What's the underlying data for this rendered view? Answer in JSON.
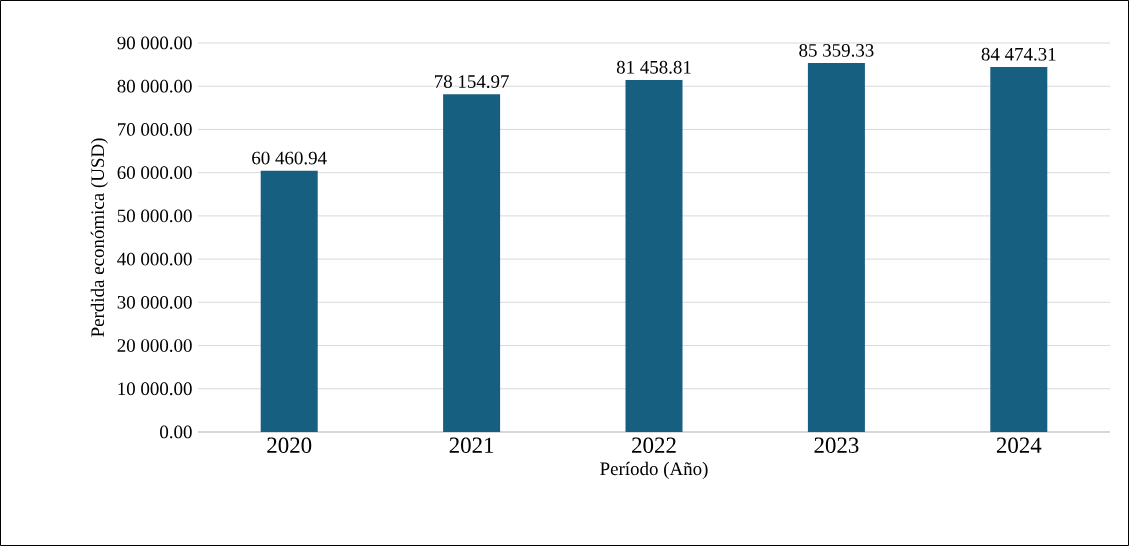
{
  "chart_data": {
    "type": "bar",
    "xlabel": "Período (Año)",
    "ylabel": "Perdida económica (USD)",
    "categories": [
      "2020",
      "2021",
      "2022",
      "2023",
      "2024"
    ],
    "values": [
      60460.94,
      78154.97,
      81458.81,
      85359.33,
      84474.31
    ],
    "value_labels": [
      "60 460.94",
      "78 154.97",
      "81 458.81",
      "85 359.33",
      "84 474.31"
    ],
    "color": "#175f81",
    "ylim": [
      0,
      90000
    ],
    "yticks": [
      {
        "value": 0,
        "label": "0.00"
      },
      {
        "value": 10000,
        "label": "10 000.00"
      },
      {
        "value": 20000,
        "label": "20 000.00"
      },
      {
        "value": 30000,
        "label": "30 000.00"
      },
      {
        "value": 40000,
        "label": "40 000.00"
      },
      {
        "value": 50000,
        "label": "50 000.00"
      },
      {
        "value": 60000,
        "label": "60 000.00"
      },
      {
        "value": 70000,
        "label": "70 000.00"
      },
      {
        "value": 80000,
        "label": "80 000.00"
      },
      {
        "value": 90000,
        "label": "90 000.00"
      }
    ],
    "grid": "y"
  }
}
